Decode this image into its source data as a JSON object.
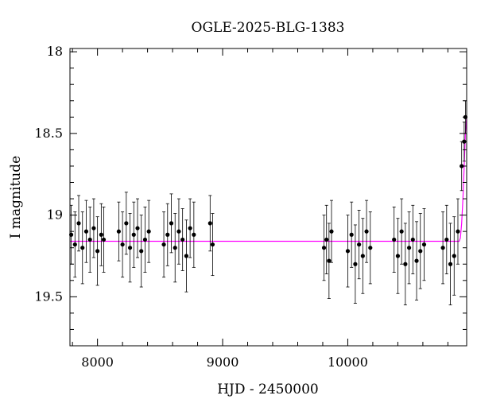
{
  "chart_data": {
    "type": "scatter",
    "title": "OGLE-2025-BLG-1383",
    "xlabel": "HJD - 2450000",
    "ylabel": "I magnitude",
    "xlim": [
      7780,
      10950
    ],
    "ylim": [
      19.8,
      17.98
    ],
    "y_inverted": true,
    "grid": false,
    "legend": "none",
    "x_ticks": [
      {
        "value": 8000,
        "label": "8000"
      },
      {
        "value": 9000,
        "label": "9000"
      },
      {
        "value": 10000,
        "label": "10000"
      }
    ],
    "y_ticks": [
      {
        "value": 18,
        "label": "18"
      },
      {
        "value": 18.5,
        "label": "18.5"
      },
      {
        "value": 19,
        "label": "19"
      },
      {
        "value": 19.5,
        "label": "19.5"
      }
    ],
    "series": [
      {
        "color": "#000000",
        "marker": "circle-with-errorbars",
        "x": [
          7790,
          7820,
          7850,
          7880,
          7910,
          7940,
          7970,
          8000,
          8030,
          8050,
          8170,
          8200,
          8230,
          8260,
          8290,
          8320,
          8350,
          8380,
          8410,
          8530,
          8560,
          8590,
          8620,
          8650,
          8680,
          8710,
          8740,
          8770,
          8900,
          8920,
          9810,
          9830,
          9850,
          9870,
          10000,
          10030,
          10060,
          10090,
          10120,
          10150,
          10180,
          10370,
          10400,
          10430,
          10460,
          10490,
          10520,
          10550,
          10580,
          10610,
          10760,
          10790,
          10820,
          10850,
          10880,
          10910,
          10930,
          10940
        ],
        "y": [
          19.12,
          19.18,
          19.05,
          19.2,
          19.1,
          19.15,
          19.08,
          19.22,
          19.12,
          19.15,
          19.1,
          19.18,
          19.05,
          19.2,
          19.12,
          19.08,
          19.22,
          19.15,
          19.1,
          19.18,
          19.12,
          19.05,
          19.2,
          19.1,
          19.15,
          19.25,
          19.08,
          19.12,
          19.05,
          19.18,
          19.2,
          19.15,
          19.28,
          19.1,
          19.22,
          19.12,
          19.3,
          19.18,
          19.25,
          19.1,
          19.2,
          19.15,
          19.25,
          19.1,
          19.3,
          19.2,
          19.15,
          19.28,
          19.22,
          19.18,
          19.2,
          19.15,
          19.3,
          19.25,
          19.1,
          18.7,
          18.55,
          18.4
        ],
        "yerr": [
          0.18,
          0.2,
          0.17,
          0.22,
          0.19,
          0.2,
          0.18,
          0.21,
          0.19,
          0.2,
          0.18,
          0.2,
          0.19,
          0.21,
          0.2,
          0.18,
          0.22,
          0.2,
          0.19,
          0.2,
          0.19,
          0.18,
          0.21,
          0.2,
          0.19,
          0.22,
          0.18,
          0.2,
          0.17,
          0.19,
          0.2,
          0.21,
          0.23,
          0.19,
          0.22,
          0.2,
          0.24,
          0.21,
          0.23,
          0.19,
          0.22,
          0.2,
          0.23,
          0.2,
          0.25,
          0.22,
          0.21,
          0.24,
          0.23,
          0.22,
          0.22,
          0.21,
          0.25,
          0.24,
          0.2,
          0.15,
          0.12,
          0.1
        ]
      }
    ],
    "model": {
      "color": "#ff00ff",
      "baseline": 19.16,
      "x": [
        7780,
        10890,
        10900,
        10910,
        10920,
        10930,
        10940,
        10950
      ],
      "y": [
        19.16,
        19.16,
        19.14,
        19.05,
        18.9,
        18.7,
        18.5,
        18.4
      ]
    }
  }
}
